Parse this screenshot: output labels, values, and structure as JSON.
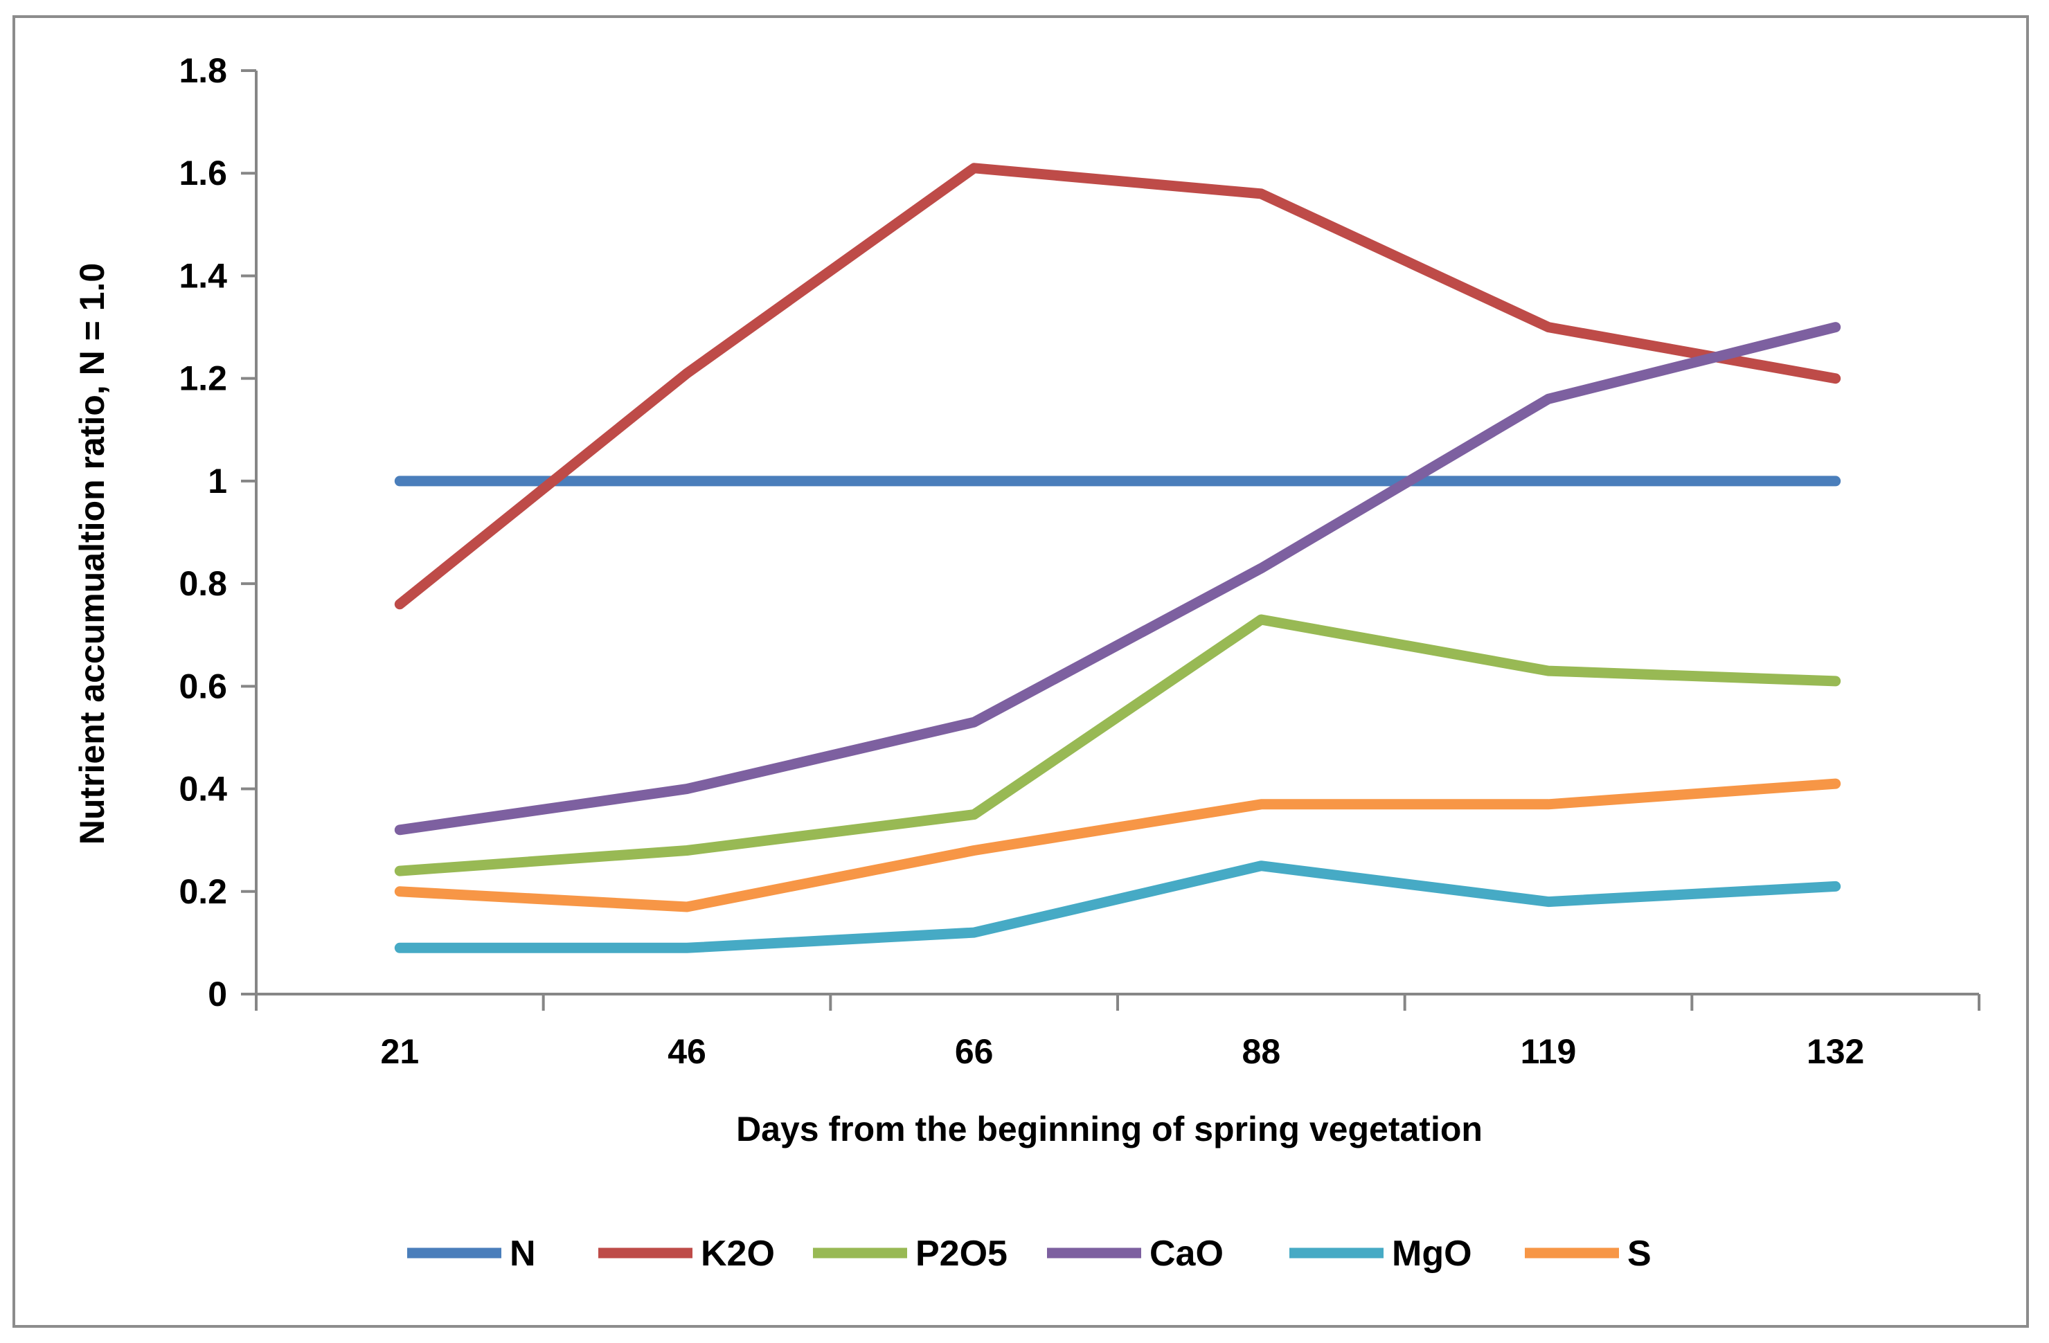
{
  "chart_data": {
    "type": "line",
    "title": "",
    "xlabel": "Days from the beginning of spring vegetation",
    "ylabel": "Nutrient accumualtion ratio, N = 1.0",
    "categories": [
      "21",
      "46",
      "66",
      "88",
      "119",
      "132"
    ],
    "ylim": [
      0,
      1.8
    ],
    "yticks": [
      "0",
      "0.2",
      "0.4",
      "0.6",
      "0.8",
      "1",
      "1.2",
      "1.4",
      "1.6",
      "1.8"
    ],
    "grid": false,
    "legend_position": "bottom",
    "series": [
      {
        "name": "N",
        "color": "#4a7ebb",
        "values": [
          1.0,
          1.0,
          1.0,
          1.0,
          1.0,
          1.0
        ]
      },
      {
        "name": "K2O",
        "color": "#be4b48",
        "values": [
          0.76,
          1.21,
          1.61,
          1.56,
          1.3,
          1.2
        ]
      },
      {
        "name": "P2O5",
        "color": "#98b954",
        "values": [
          0.24,
          0.28,
          0.35,
          0.73,
          0.63,
          0.61
        ]
      },
      {
        "name": "CaO",
        "color": "#7d60a0",
        "values": [
          0.32,
          0.4,
          0.53,
          0.83,
          1.16,
          1.3
        ]
      },
      {
        "name": "MgO",
        "color": "#46aac5",
        "values": [
          0.09,
          0.09,
          0.12,
          0.25,
          0.18,
          0.21
        ]
      },
      {
        "name": "S",
        "color": "#f79646",
        "values": [
          0.2,
          0.17,
          0.28,
          0.37,
          0.37,
          0.41
        ]
      }
    ]
  }
}
